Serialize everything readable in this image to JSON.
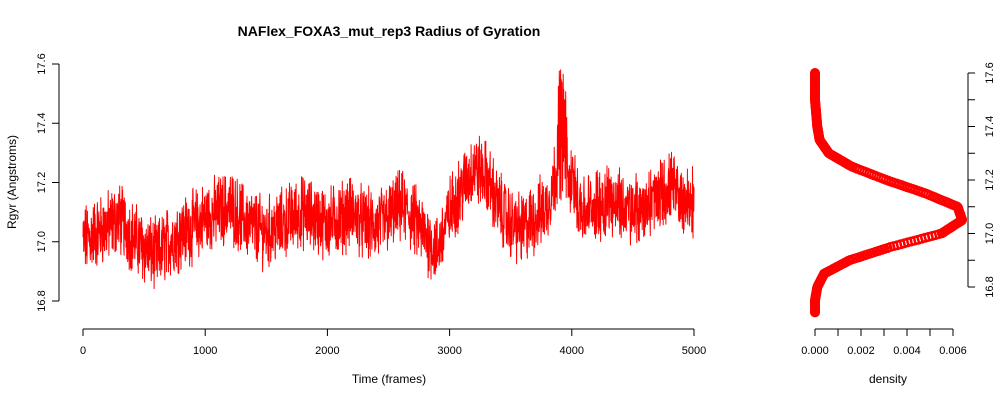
{
  "chart_data": [
    {
      "type": "line",
      "title": "NAFlex_FOXA3_mut_rep3 Radius of Gyration",
      "xlabel": "Time (frames)",
      "ylabel": "Rgyr (Angstroms)",
      "xlim": [
        0,
        5000
      ],
      "ylim": [
        16.75,
        17.6
      ],
      "x_ticks": [
        "0",
        "1000",
        "2000",
        "3000",
        "4000",
        "5000"
      ],
      "y_ticks": [
        "16.8",
        "17.0",
        "17.2",
        "17.4",
        "17.6"
      ],
      "series": [
        {
          "color": "#ff0000",
          "x": [
            0,
            100,
            200,
            300,
            400,
            500,
            600,
            700,
            800,
            900,
            1000,
            1100,
            1200,
            1300,
            1400,
            1500,
            1600,
            1700,
            1800,
            1900,
            2000,
            2100,
            2200,
            2300,
            2400,
            2500,
            2600,
            2700,
            2800,
            2900,
            3000,
            3100,
            3200,
            3300,
            3400,
            3500,
            3600,
            3700,
            3800,
            3900,
            4000,
            4100,
            4200,
            4300,
            4400,
            4500,
            4600,
            4700,
            4800,
            4900,
            5000
          ],
          "y": [
            17.0,
            17.03,
            17.05,
            17.08,
            17.02,
            16.98,
            16.95,
            17.0,
            17.03,
            17.05,
            17.08,
            17.1,
            17.12,
            17.08,
            17.05,
            17.03,
            17.05,
            17.08,
            17.1,
            17.08,
            17.06,
            17.08,
            17.1,
            17.06,
            17.05,
            17.08,
            17.12,
            17.08,
            17.02,
            16.97,
            17.1,
            17.18,
            17.25,
            17.22,
            17.12,
            17.06,
            17.04,
            17.08,
            17.12,
            17.28,
            17.2,
            17.1,
            17.12,
            17.15,
            17.12,
            17.1,
            17.12,
            17.15,
            17.18,
            17.15,
            17.12
          ]
        }
      ]
    },
    {
      "type": "line",
      "title": "",
      "xlabel": "density",
      "ylabel": "",
      "xlim": [
        0,
        0.0065
      ],
      "ylim": [
        16.75,
        17.6
      ],
      "x_ticks": [
        "0.000",
        "0.002",
        "0.004",
        "0.006"
      ],
      "y_ticks": [
        "16.8",
        "17.0",
        "17.2",
        "17.4",
        "17.6"
      ],
      "series": [
        {
          "color": "#ff0000",
          "y": [
            16.7,
            16.75,
            16.8,
            16.85,
            16.9,
            16.95,
            17.0,
            17.05,
            17.1,
            17.15,
            17.2,
            17.25,
            17.3,
            17.35,
            17.4,
            17.5,
            17.6
          ],
          "density": [
            0.0,
            0.0,
            0.0001,
            0.0004,
            0.0015,
            0.0033,
            0.0055,
            0.0064,
            0.0062,
            0.0048,
            0.0031,
            0.0016,
            0.0006,
            0.0002,
            0.0001,
            0.0,
            0.0
          ]
        }
      ]
    }
  ]
}
